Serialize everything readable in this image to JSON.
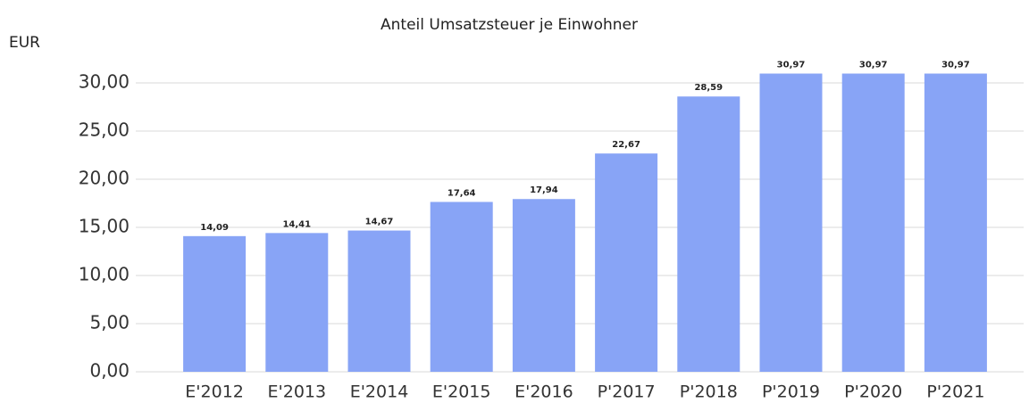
{
  "chart_data": {
    "type": "bar",
    "title": "Anteil Umsatzsteuer je Einwohner",
    "y_label": "EUR",
    "categories": [
      "E'2012",
      "E'2013",
      "E'2014",
      "E'2015",
      "E'2016",
      "P'2017",
      "P'2018",
      "P'2019",
      "P'2020",
      "P'2021"
    ],
    "values": [
      14.09,
      14.41,
      14.67,
      17.64,
      17.94,
      22.67,
      28.59,
      30.97,
      30.97,
      30.97
    ],
    "value_labels": [
      "14,09",
      "14,41",
      "14,67",
      "17,64",
      "17,94",
      "22,67",
      "28,59",
      "30,97",
      "30,97",
      "30,97"
    ],
    "color": "#88a4f6",
    "ylim": [
      0,
      32
    ],
    "yticks": [
      {
        "value": 0,
        "label": "0,00"
      },
      {
        "value": 5,
        "label": "5,00"
      },
      {
        "value": 10,
        "label": "10,00"
      },
      {
        "value": 15,
        "label": "15,00"
      },
      {
        "value": 20,
        "label": "20,00"
      },
      {
        "value": 25,
        "label": "25,00"
      },
      {
        "value": 30,
        "label": "30,00"
      }
    ],
    "grid": true
  }
}
